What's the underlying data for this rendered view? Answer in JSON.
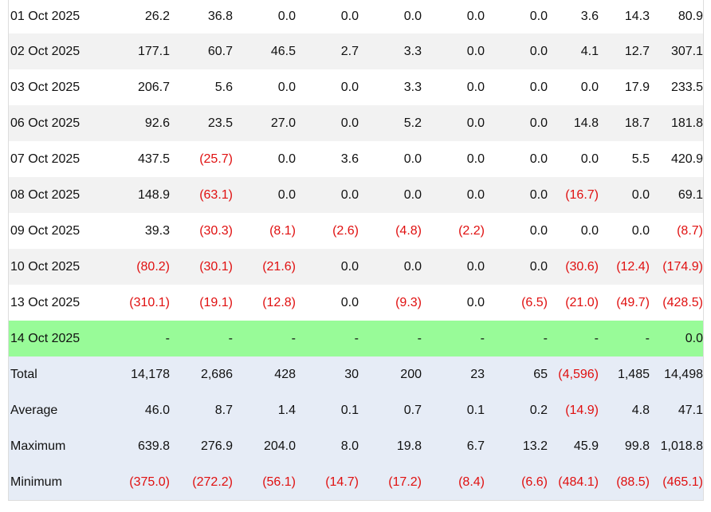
{
  "rows": [
    {
      "date": "01 Oct 2025",
      "values": [
        "26.2",
        "36.8",
        "0.0",
        "0.0",
        "0.0",
        "0.0",
        "0.0",
        "3.6",
        "14.3",
        "80.9"
      ],
      "style": "odd"
    },
    {
      "date": "02 Oct 2025",
      "values": [
        "177.1",
        "60.7",
        "46.5",
        "2.7",
        "3.3",
        "0.0",
        "0.0",
        "4.1",
        "12.7",
        "307.1"
      ],
      "style": "even"
    },
    {
      "date": "03 Oct 2025",
      "values": [
        "206.7",
        "5.6",
        "0.0",
        "0.0",
        "3.3",
        "0.0",
        "0.0",
        "0.0",
        "17.9",
        "233.5"
      ],
      "style": "odd"
    },
    {
      "date": "06 Oct 2025",
      "values": [
        "92.6",
        "23.5",
        "27.0",
        "0.0",
        "5.2",
        "0.0",
        "0.0",
        "14.8",
        "18.7",
        "181.8"
      ],
      "style": "even"
    },
    {
      "date": "07 Oct 2025",
      "values": [
        "437.5",
        "(25.7)",
        "0.0",
        "3.6",
        "0.0",
        "0.0",
        "0.0",
        "0.0",
        "5.5",
        "420.9"
      ],
      "style": "odd"
    },
    {
      "date": "08 Oct 2025",
      "values": [
        "148.9",
        "(63.1)",
        "0.0",
        "0.0",
        "0.0",
        "0.0",
        "0.0",
        "(16.7)",
        "0.0",
        "69.1"
      ],
      "style": "even"
    },
    {
      "date": "09 Oct 2025",
      "values": [
        "39.3",
        "(30.3)",
        "(8.1)",
        "(2.6)",
        "(4.8)",
        "(2.2)",
        "0.0",
        "0.0",
        "0.0",
        "(8.7)"
      ],
      "style": "odd"
    },
    {
      "date": "10 Oct 2025",
      "values": [
        "(80.2)",
        "(30.1)",
        "(21.6)",
        "0.0",
        "0.0",
        "0.0",
        "0.0",
        "(30.6)",
        "(12.4)",
        "(174.9)"
      ],
      "style": "even"
    },
    {
      "date": "13 Oct 2025",
      "values": [
        "(310.1)",
        "(19.1)",
        "(12.8)",
        "0.0",
        "(9.3)",
        "0.0",
        "(6.5)",
        "(21.0)",
        "(49.7)",
        "(428.5)"
      ],
      "style": "odd"
    },
    {
      "date": "14 Oct 2025",
      "values": [
        "-",
        "-",
        "-",
        "-",
        "-",
        "-",
        "-",
        "-",
        "-",
        "0.0"
      ],
      "style": "today"
    }
  ],
  "summary": [
    {
      "label": "Total",
      "values": [
        "14,178",
        "2,686",
        "428",
        "30",
        "200",
        "23",
        "65",
        "(4,596)",
        "1,485",
        "14,498"
      ]
    },
    {
      "label": "Average",
      "values": [
        "46.0",
        "8.7",
        "1.4",
        "0.1",
        "0.7",
        "0.1",
        "0.2",
        "(14.9)",
        "4.8",
        "47.1"
      ]
    },
    {
      "label": "Maximum",
      "values": [
        "639.8",
        "276.9",
        "204.0",
        "8.0",
        "19.8",
        "6.7",
        "13.2",
        "45.9",
        "99.8",
        "1,018.8"
      ]
    },
    {
      "label": "Minimum",
      "values": [
        "(375.0)",
        "(272.2)",
        "(56.1)",
        "(14.7)",
        "(17.2)",
        "(8.4)",
        "(6.6)",
        "(484.1)",
        "(88.5)",
        "(465.1)"
      ]
    }
  ],
  "colors": {
    "negative": "#e01010",
    "row_alt": "#f2f2f2",
    "today_highlight": "#98fb98",
    "summary_bg": "#e6ecf6"
  }
}
